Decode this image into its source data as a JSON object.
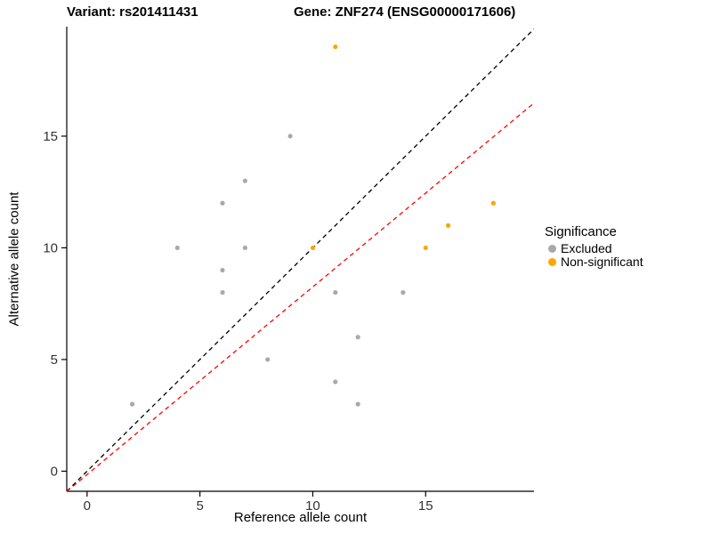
{
  "titles": {
    "left": "Variant: rs201411431",
    "right": "Gene: ZNF274 (ENSG00000171606)"
  },
  "legend": {
    "title": "Significance",
    "items": [
      {
        "label": "Excluded",
        "color": "#A9A9A9"
      },
      {
        "label": "Non-significant",
        "color": "#FFA500"
      }
    ]
  },
  "chart_data": {
    "type": "scatter",
    "title": "Variant: rs201411431 / Gene: ZNF274 (ENSG00000171606)",
    "xlabel": "Reference allele count",
    "ylabel": "Alternative allele count",
    "xlim": [
      -0.9,
      19.8
    ],
    "ylim": [
      -0.9,
      19.9
    ],
    "xticks": [
      0,
      5,
      10,
      15
    ],
    "yticks": [
      0,
      5,
      10,
      15
    ],
    "grid": false,
    "legend_position": "right",
    "axis_color": "#000000",
    "tick_label_color": "#333333",
    "series": [
      {
        "name": "Excluded",
        "color": "#A9A9A9",
        "points": [
          [
            2,
            3
          ],
          [
            4,
            10
          ],
          [
            6,
            8
          ],
          [
            6,
            9
          ],
          [
            6,
            12
          ],
          [
            7,
            10
          ],
          [
            7,
            13
          ],
          [
            8,
            5
          ],
          [
            9,
            15
          ],
          [
            11,
            4
          ],
          [
            11,
            8
          ],
          [
            12,
            3
          ],
          [
            12,
            6
          ],
          [
            14,
            8
          ]
        ]
      },
      {
        "name": "Non-significant",
        "color": "#FFA500",
        "points": [
          [
            10,
            10
          ],
          [
            11,
            19
          ],
          [
            15,
            10
          ],
          [
            16,
            11
          ],
          [
            18,
            12
          ]
        ]
      }
    ],
    "lines": [
      {
        "name": "identity",
        "slope": 1,
        "intercept": 0,
        "color": "#000000",
        "dash": "5,4"
      },
      {
        "name": "fit",
        "slope": 0.84,
        "intercept": -0.15,
        "color": "#FF0000",
        "dash": "5,4"
      }
    ]
  }
}
